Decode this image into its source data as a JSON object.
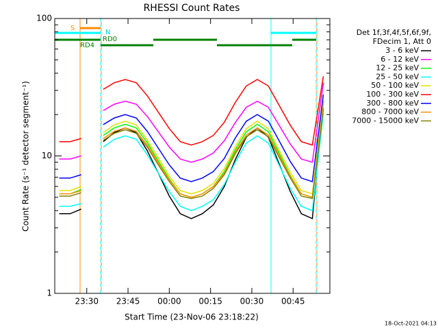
{
  "chart_data": {
    "type": "line",
    "title": "RHESSI Count Rates",
    "xlabel": "Start Time (23-Nov-06 23:18:22)",
    "ylabel": "Count Rate (s⁻¹ detector segment⁻¹)",
    "legend_header": [
      "Det 1f,3f,4f,5f,6f,9f,",
      "FDecim 1, Att 0"
    ],
    "timestamp": "18-Oct-2021 04:13",
    "annotations": [
      "S",
      "N",
      "RD0",
      "RD4"
    ],
    "log_y": true,
    "legend": "right",
    "xlim": [
      "23:18:22",
      "00:58:22"
    ],
    "xticks": [
      "23:30",
      "23:45",
      "00:00",
      "00:15",
      "00:30",
      "00:45"
    ],
    "ylim": [
      1,
      100
    ],
    "yticks": [
      1,
      10,
      100
    ],
    "x": [
      "23:20",
      "23:24",
      "23:28",
      "23:32",
      "23:36",
      "23:40",
      "23:44",
      "23:48",
      "23:52",
      "23:56",
      "00:00",
      "00:04",
      "00:08",
      "00:12",
      "00:16",
      "00:20",
      "00:24",
      "00:28",
      "00:32",
      "00:36",
      "00:40",
      "00:44",
      "00:48",
      "00:52",
      "00:56"
    ],
    "series": [
      {
        "name": "3 - 6 keV",
        "color": "#000000",
        "values": [
          3.8,
          3.8,
          4.1,
          null,
          12.7,
          14.8,
          16,
          14.8,
          10.9,
          7.5,
          5.1,
          3.8,
          3.5,
          3.8,
          4.4,
          6.0,
          9.4,
          13.7,
          16,
          13.7,
          8.7,
          5.5,
          3.8,
          3.5,
          25
        ]
      },
      {
        "name": "6 - 12 keV",
        "color": "#ff00ff",
        "values": [
          9.5,
          9.5,
          10,
          null,
          21.4,
          23.8,
          25,
          23.8,
          19.4,
          15,
          11.6,
          9.5,
          9,
          9.5,
          10.5,
          12.9,
          17.5,
          22.6,
          25,
          22.6,
          16.6,
          12.2,
          9.5,
          9,
          34
        ]
      },
      {
        "name": "12 - 25 keV",
        "color": "#00ff00",
        "values": [
          5.3,
          5.3,
          5.7,
          null,
          14.1,
          16,
          17,
          16,
          12.5,
          9.2,
          6.8,
          5.3,
          5,
          5.3,
          6,
          7.7,
          11.1,
          15,
          17,
          15,
          10.4,
          7.2,
          5.3,
          5,
          24.5
        ]
      },
      {
        "name": "25 - 50 keV",
        "color": "#00ffff",
        "values": [
          4.3,
          4.3,
          4.5,
          null,
          11.6,
          13.2,
          14,
          13.2,
          10.2,
          7.5,
          5.5,
          4.3,
          4,
          4.3,
          4.8,
          6.2,
          9,
          12.4,
          14,
          12.4,
          8.5,
          5.8,
          4.3,
          4,
          20.4
        ]
      },
      {
        "name": "50 - 100 keV",
        "color": "#e0e000",
        "values": [
          5.6,
          5.6,
          6,
          null,
          14.8,
          16.8,
          17.9,
          16.8,
          13.1,
          9.7,
          7.1,
          5.6,
          5.3,
          5.6,
          6.3,
          8.1,
          11.7,
          15.8,
          17.9,
          15.8,
          10.9,
          7.6,
          5.6,
          5.3,
          25.7
        ]
      },
      {
        "name": "100 - 300 keV",
        "color": "#ff0000",
        "values": [
          12.7,
          12.7,
          13.4,
          null,
          30.5,
          34.1,
          36,
          34.1,
          27.4,
          20.8,
          15.8,
          12.7,
          12,
          12.7,
          14.1,
          17.6,
          24.5,
          32.3,
          36,
          32.3,
          23.2,
          16.7,
          12.7,
          12,
          38
        ]
      },
      {
        "name": "300 - 800 keV",
        "color": "#0000ff",
        "values": [
          6.9,
          6.9,
          7.3,
          null,
          16.9,
          18.9,
          20,
          18.9,
          15.1,
          11.4,
          8.6,
          6.9,
          6.5,
          6.9,
          7.7,
          9.6,
          13.5,
          17.9,
          20,
          17.9,
          12.8,
          9.1,
          6.9,
          6.5,
          28
        ]
      },
      {
        "name": "800 - 7000 keV",
        "color": "#ff8c00",
        "values": [
          5.3,
          5.3,
          5.6,
          null,
          13.4,
          15.1,
          16,
          15.1,
          12,
          8.9,
          6.7,
          5.3,
          5,
          5.3,
          6,
          7.5,
          10.7,
          14.2,
          16,
          14.2,
          10,
          7.1,
          5.3,
          5,
          22.7
        ]
      },
      {
        "name": "7000 - 15000 keV",
        "color": "#808000",
        "values": [
          5.1,
          5.1,
          5.4,
          null,
          13,
          14.6,
          15.5,
          14.6,
          11.6,
          8.6,
          6.5,
          5.1,
          4.9,
          5.1,
          5.8,
          7.3,
          10.4,
          13.8,
          15.5,
          13.8,
          9.7,
          6.9,
          5.1,
          4.9,
          22
        ]
      }
    ]
  }
}
